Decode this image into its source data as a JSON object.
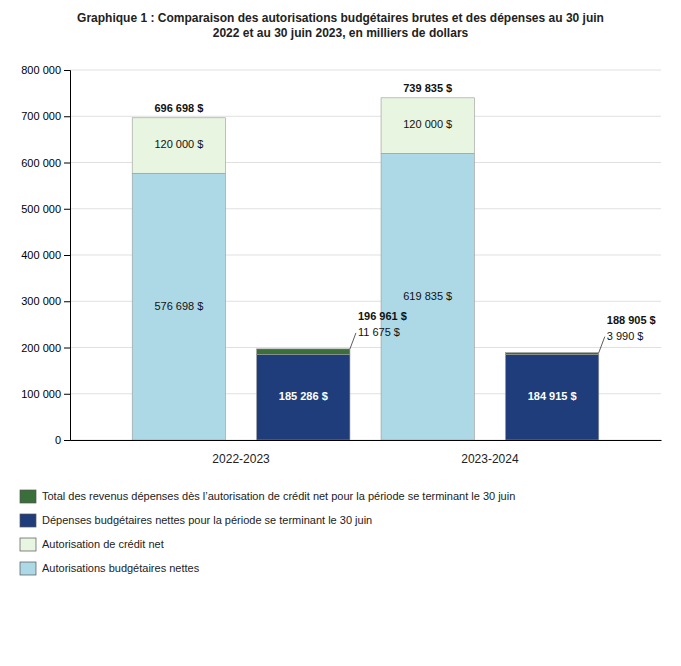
{
  "chart_data": {
    "type": "bar",
    "stacked": true,
    "title": "Graphique 1 : Comparaison des autorisations budgétaires brutes et des dépenses au 30 juin\n2022 et au 30 juin 2023, en milliers de dollars",
    "categories": [
      "2022-2023",
      null,
      "2023-2024",
      null
    ],
    "series": [
      {
        "name": "Autorisations budgétaires nettes",
        "color": "#add8e6",
        "values": [
          576698,
          null,
          619835,
          null
        ],
        "value_labels": [
          "576 698 $",
          null,
          "619 835 $",
          null
        ]
      },
      {
        "name": "Autorisation de crédit net",
        "color": "#e8f5e0",
        "values": [
          120000,
          null,
          120000,
          null
        ],
        "value_labels": [
          "120 000 $",
          null,
          "120 000 $",
          null
        ]
      },
      {
        "name": "Dépenses budgétaires nettes pour la période se terminant le 30 juin",
        "color": "#1f3d7a",
        "values": [
          null,
          185286,
          null,
          184915
        ],
        "value_labels": [
          null,
          "185 286 $",
          null,
          "184 915 $"
        ]
      },
      {
        "name": "Total des revenus dépenses dès l’autorisation de crédit net pour la période se terminant le 30 juin",
        "color": "#3a6e3a",
        "values": [
          null,
          11675,
          null,
          3990
        ],
        "value_labels": [
          null,
          "11 675 $",
          null,
          "3 990 $"
        ]
      }
    ],
    "totals": [
      696698,
      196961,
      739835,
      188905
    ],
    "total_labels": [
      "696 698 $",
      "196 961 $",
      "739 835 $",
      "188 905 $"
    ],
    "data_labels": true,
    "ylim": [
      0,
      800000
    ],
    "yticks": [
      0,
      {
        "value": 100000,
        "label": "100 000"
      },
      {
        "value": 200000,
        "label": "200 000"
      },
      {
        "value": 300000,
        "label": "300 000"
      },
      {
        "value": 400000,
        "label": "400 000"
      },
      {
        "value": 500000,
        "label": "500 000"
      },
      {
        "value": 600000,
        "label": "600 000"
      },
      {
        "value": 700000,
        "label": "700 000"
      },
      {
        "value": 800000,
        "label": "800 000"
      }
    ],
    "grid": true,
    "legend": "bottom"
  }
}
